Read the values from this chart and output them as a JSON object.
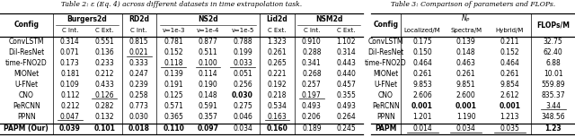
{
  "title_left": "Table 2: ε (Eq. 4) across different datasets in time extrapolation task.",
  "title_right": "Table 3: Comparison of parameters and FLOPs.",
  "table1": {
    "col_groups": [
      {
        "label": "Burgers2d",
        "span": 2,
        "sub": [
          "C Int.",
          "C Ext."
        ]
      },
      {
        "label": "RD2d",
        "span": 1,
        "sub": [
          "C Int."
        ]
      },
      {
        "label": "NS2d",
        "span": 3,
        "sub": [
          "ν=1e-3",
          "ν=1e-4",
          "ν=1e-5"
        ]
      },
      {
        "label": "Lid2d",
        "span": 1,
        "sub": [
          "C Ext."
        ]
      },
      {
        "label": "NSM2d",
        "span": 2,
        "sub": [
          "C Int.",
          "C Ext."
        ]
      }
    ],
    "rows": [
      {
        "name": "ConvLSTM",
        "vals": [
          "0.314",
          "0.551",
          "0.815",
          "0.781",
          "0.877",
          "0.788",
          "1.323",
          "0.910",
          "1.102"
        ],
        "bold": [],
        "underline": []
      },
      {
        "name": "Dil-ResNet",
        "vals": [
          "0.071",
          "0.136",
          "0.021",
          "0.152",
          "0.511",
          "0.199",
          "0.261",
          "0.288",
          "0.314"
        ],
        "bold": [],
        "underline": [
          2
        ]
      },
      {
        "name": "time-FNO2D",
        "vals": [
          "0.173",
          "0.233",
          "0.333",
          "0.118",
          "0.100",
          "0.033",
          "0.265",
          "0.341",
          "0.443"
        ],
        "bold": [],
        "underline": [
          3,
          4,
          5
        ]
      },
      {
        "name": "MIONet",
        "vals": [
          "0.181",
          "0.212",
          "0.247",
          "0.139",
          "0.114",
          "0.051",
          "0.221",
          "0.268",
          "0.440"
        ],
        "bold": [],
        "underline": []
      },
      {
        "name": "U-FNet",
        "vals": [
          "0.109",
          "0.433",
          "0.239",
          "0.191",
          "0.190",
          "0.256",
          "0.192",
          "0.257",
          "0.457"
        ],
        "bold": [],
        "underline": []
      },
      {
        "name": "CNO",
        "vals": [
          "0.112",
          "0.126",
          "0.258",
          "0.125",
          "0.148",
          "0.030",
          "0.218",
          "0.197",
          "0.355"
        ],
        "bold": [
          5
        ],
        "underline": [
          1,
          7
        ]
      },
      {
        "name": "PeRCNN",
        "vals": [
          "0.212",
          "0.282",
          "0.773",
          "0.571",
          "0.591",
          "0.275",
          "0.534",
          "0.493",
          "0.493"
        ],
        "bold": [],
        "underline": []
      },
      {
        "name": "PPNN",
        "vals": [
          "0.047",
          "0.132",
          "0.030",
          "0.365",
          "0.357",
          "0.046",
          "0.163",
          "0.206",
          "0.264"
        ],
        "bold": [],
        "underline": [
          0,
          6
        ]
      }
    ],
    "last_row": {
      "name": "PAPM (Our)",
      "vals": [
        "0.039",
        "0.101",
        "0.018",
        "0.110",
        "0.097",
        "0.034",
        "0.160",
        "0.189",
        "0.245"
      ],
      "bold": [
        0,
        1,
        2,
        3,
        4,
        6
      ],
      "underline": []
    }
  },
  "table2": {
    "col_groups": [
      {
        "label": "NP",
        "span": 3,
        "sub": [
          "Localized/M",
          "Spectra/M",
          "Hybrid/M"
        ]
      },
      {
        "label": "FLOPs/M",
        "span": 1,
        "sub": [
          ""
        ]
      }
    ],
    "rows": [
      {
        "name": "ConvLSTM",
        "vals": [
          "0.175",
          "0.139",
          "0.211",
          "32.75"
        ],
        "bold": [],
        "underline": []
      },
      {
        "name": "Dil-ResNet",
        "vals": [
          "0.150",
          "0.148",
          "0.152",
          "62.40"
        ],
        "bold": [],
        "underline": []
      },
      {
        "name": "time-FNO2D",
        "vals": [
          "0.464",
          "0.463",
          "0.464",
          "6.88"
        ],
        "bold": [],
        "underline": []
      },
      {
        "name": "MIONet",
        "vals": [
          "0.261",
          "0.261",
          "0.261",
          "10.01"
        ],
        "bold": [],
        "underline": []
      },
      {
        "name": "U-FNet",
        "vals": [
          "9.853",
          "9.851",
          "9.854",
          "559.89"
        ],
        "bold": [],
        "underline": []
      },
      {
        "name": "CNO",
        "vals": [
          "2.606",
          "2.600",
          "2.612",
          "835.37"
        ],
        "bold": [],
        "underline": []
      },
      {
        "name": "PeRCNN",
        "vals": [
          "0.001",
          "0.001",
          "0.001",
          "3.44"
        ],
        "bold": [
          0,
          1,
          2
        ],
        "underline": [
          3
        ]
      },
      {
        "name": "PPNN",
        "vals": [
          "1.201",
          "1.190",
          "1.213",
          "348.56"
        ],
        "bold": [],
        "underline": []
      }
    ],
    "last_row": {
      "name": "PAPM",
      "vals": [
        "0.014",
        "0.034",
        "0.035",
        "1.23"
      ],
      "bold": [
        3
      ],
      "underline": [
        0,
        1,
        2
      ]
    }
  }
}
